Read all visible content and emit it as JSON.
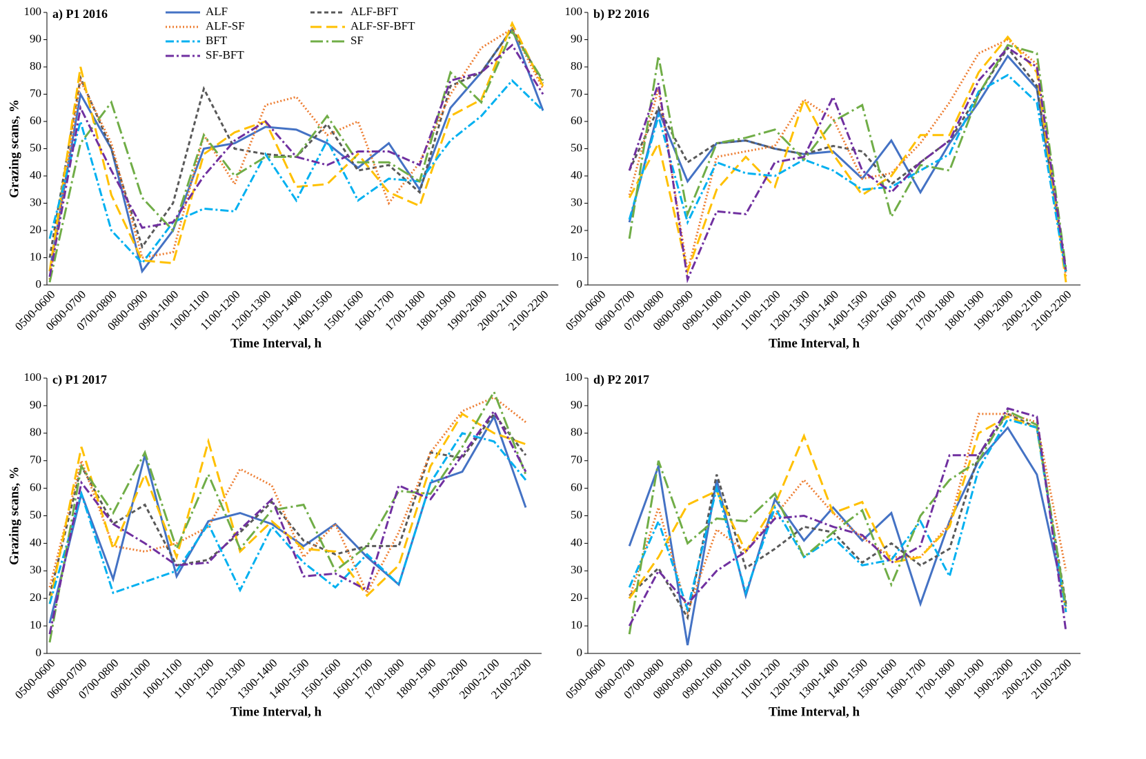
{
  "chart_data": [
    {
      "type": "line",
      "title": "a) P1 2016",
      "y_label": "Grazing scans, %",
      "x_label": "Time Interval, h",
      "categories": [
        "0500-0600",
        "0600-0700",
        "0700-0800",
        "0800-0900",
        "0900-1000",
        "1000-1100",
        "1100-1200",
        "1200-1300",
        "1300-1400",
        "1400-1500",
        "1500-1600",
        "1600-1700",
        "1700-1800",
        "1800-1900",
        "1900-2000",
        "2000-2100",
        "2100-2200"
      ],
      "ylim": [
        0,
        100
      ],
      "yticks": [
        0,
        10,
        20,
        30,
        40,
        50,
        60,
        70,
        80,
        90,
        100
      ],
      "legend": "top",
      "series": [
        {
          "name": "ALF",
          "color": "#4472c4",
          "line_style": "solid",
          "values": [
            5,
            70,
            50,
            5,
            20,
            50,
            52,
            58,
            57,
            52,
            43,
            52,
            35,
            65,
            78,
            94,
            64
          ]
        },
        {
          "name": "ALF-BFT",
          "color": "#595959",
          "line_style": "dashed",
          "values": [
            10,
            76,
            50,
            14,
            30,
            72,
            50,
            48,
            47,
            59,
            42,
            44,
            34,
            73,
            78,
            94,
            74
          ]
        },
        {
          "name": "ALF-SF",
          "color": "#ed7d31",
          "line_style": "dotted",
          "values": [
            2,
            75,
            52,
            10,
            12,
            55,
            37,
            66,
            69,
            55,
            60,
            30,
            45,
            70,
            87,
            94,
            72
          ]
        },
        {
          "name": "ALF-SF-BFT",
          "color": "#ffc000",
          "line_style": "long-dashed",
          "values": [
            5,
            80,
            33,
            9,
            8,
            48,
            56,
            60,
            36,
            37,
            48,
            34,
            29,
            62,
            68,
            96,
            73
          ]
        },
        {
          "name": "BFT",
          "color": "#00b0f0",
          "line_style": "dash-dot",
          "values": [
            17,
            60,
            20,
            8,
            23,
            28,
            27,
            48,
            31,
            53,
            31,
            39,
            38,
            53,
            62,
            75,
            64
          ]
        },
        {
          "name": "SF",
          "color": "#70ad47",
          "line_style": "long-dash-dot",
          "values": [
            1,
            52,
            67,
            32,
            20,
            55,
            40,
            47,
            47,
            62,
            45,
            45,
            38,
            78,
            67,
            93,
            75
          ]
        },
        {
          "name": "SF-BFT",
          "color": "#7030a0",
          "line_style": "dash-dot",
          "values": [
            3,
            65,
            42,
            21,
            23,
            40,
            53,
            60,
            47,
            44,
            49,
            49,
            44,
            75,
            78,
            88,
            70
          ]
        }
      ]
    },
    {
      "type": "line",
      "title": "b) P2 2016",
      "x_label": "Time Interval, h",
      "categories": [
        "0500-0600",
        "0600-0700",
        "0700-0800",
        "0800-0900",
        "0900-1000",
        "1000-1100",
        "1100-1200",
        "1200-1300",
        "1300-1400",
        "1400-1500",
        "1500-1600",
        "1600-1700",
        "1700-1800",
        "1800-1900",
        "1900-2000",
        "2000-2100",
        "2100-2200"
      ],
      "ylim": [
        0,
        100
      ],
      "yticks": [
        0,
        10,
        20,
        30,
        40,
        50,
        60,
        70,
        80,
        90,
        100
      ],
      "series": [
        {
          "color": "#4472c4",
          "line_style": "solid",
          "values": [
            null,
            23,
            64,
            38,
            52,
            53,
            50,
            48,
            49,
            39,
            53,
            34,
            52,
            67,
            84,
            72,
            5
          ]
        },
        {
          "color": "#595959",
          "line_style": "dashed",
          "values": [
            null,
            42,
            65,
            45,
            52,
            53,
            50,
            48,
            51,
            49,
            37,
            45,
            53,
            70,
            87,
            73,
            5
          ]
        },
        {
          "color": "#ed7d31",
          "line_style": "dotted",
          "values": [
            null,
            33,
            72,
            5,
            47,
            49,
            51,
            68,
            61,
            39,
            41,
            52,
            67,
            85,
            90,
            81,
            3
          ]
        },
        {
          "color": "#ffc000",
          "line_style": "long-dashed",
          "values": [
            null,
            32,
            52,
            5,
            35,
            47,
            36,
            68,
            48,
            33,
            40,
            55,
            55,
            78,
            91,
            78,
            1
          ]
        },
        {
          "color": "#00b0f0",
          "line_style": "dash-dot",
          "values": [
            null,
            24,
            62,
            23,
            45,
            41,
            40,
            46,
            42,
            35,
            36,
            42,
            48,
            71,
            77,
            67,
            4
          ]
        },
        {
          "color": "#70ad47",
          "line_style": "long-dash-dot",
          "values": [
            null,
            17,
            84,
            26,
            52,
            54,
            57,
            46,
            60,
            66,
            25,
            44,
            42,
            70,
            88,
            85,
            6
          ]
        },
        {
          "color": "#7030a0",
          "line_style": "dash-dot",
          "values": [
            null,
            42,
            74,
            2,
            27,
            26,
            45,
            47,
            69,
            42,
            34,
            45,
            53,
            75,
            87,
            80,
            5
          ]
        }
      ]
    },
    {
      "type": "line",
      "title": "c) P1 2017",
      "y_label": "Grazing scans, %",
      "x_label": "Time Interval, h",
      "categories": [
        "0500-0600",
        "0600-0700",
        "0700-0800",
        "0900-1000",
        "1000-1100",
        "1100-1200",
        "1200-1300",
        "1300-1400",
        "1400-1500",
        "1500-1600",
        "1600-1700",
        "1700-1800",
        "1800-1900",
        "1900-2000",
        "2000-2100",
        "2100-2200"
      ],
      "ylim": [
        0,
        100
      ],
      "yticks": [
        0,
        10,
        20,
        30,
        40,
        50,
        60,
        70,
        80,
        90,
        100
      ],
      "series": [
        {
          "color": "#4472c4",
          "line_style": "solid",
          "values": [
            11,
            58,
            27,
            72,
            28,
            48,
            51,
            47,
            39,
            47,
            35,
            25,
            62,
            66,
            86,
            53
          ]
        },
        {
          "color": "#595959",
          "line_style": "dashed",
          "values": [
            21,
            68,
            47,
            54,
            32,
            34,
            44,
            55,
            41,
            36,
            39,
            39,
            73,
            71,
            87,
            72
          ]
        },
        {
          "color": "#ed7d31",
          "line_style": "dotted",
          "values": [
            24,
            70,
            39,
            37,
            40,
            46,
            67,
            61,
            35,
            47,
            22,
            44,
            73,
            88,
            93,
            84
          ]
        },
        {
          "color": "#ffc000",
          "line_style": "long-dashed",
          "values": [
            18,
            75,
            38,
            65,
            35,
            77,
            37,
            48,
            38,
            37,
            21,
            32,
            68,
            87,
            80,
            76
          ]
        },
        {
          "color": "#00b0f0",
          "line_style": "dash-dot",
          "values": [
            18,
            58,
            22,
            26,
            30,
            47,
            23,
            46,
            33,
            24,
            36,
            25,
            62,
            80,
            77,
            63
          ]
        },
        {
          "color": "#70ad47",
          "line_style": "long-dash-dot",
          "values": [
            4,
            68,
            51,
            73,
            38,
            65,
            38,
            52,
            54,
            30,
            39,
            59,
            58,
            75,
            95,
            65
          ]
        },
        {
          "color": "#7030a0",
          "line_style": "dash-dot",
          "values": [
            7,
            62,
            47,
            40,
            32,
            33,
            45,
            56,
            28,
            29,
            23,
            61,
            56,
            72,
            88,
            66
          ]
        }
      ]
    },
    {
      "type": "line",
      "title": "d) P2 2017",
      "x_label": "Time Interval, h",
      "categories": [
        "0500-0600",
        "0600-0700",
        "0700-0800",
        "0800-0900",
        "0900-1000",
        "1000-1100",
        "1100-1200",
        "1200-1300",
        "1300-1400",
        "1400-1500",
        "1500-1600",
        "1600-1700",
        "1700-1800",
        "1800-1900",
        "1900-2000",
        "2000-2100",
        "2100-2200"
      ],
      "ylim": [
        0,
        100
      ],
      "yticks": [
        0,
        10,
        20,
        30,
        40,
        50,
        60,
        70,
        80,
        90,
        100
      ],
      "series": [
        {
          "color": "#4472c4",
          "line_style": "solid",
          "values": [
            null,
            39,
            68,
            3,
            63,
            21,
            56,
            41,
            53,
            41,
            51,
            18,
            48,
            70,
            82,
            65,
            17
          ]
        },
        {
          "color": "#595959",
          "line_style": "dashed",
          "values": [
            null,
            21,
            31,
            13,
            65,
            31,
            38,
            46,
            44,
            33,
            40,
            32,
            38,
            72,
            87,
            82,
            18
          ]
        },
        {
          "color": "#ed7d31",
          "line_style": "dotted",
          "values": [
            null,
            20,
            53,
            15,
            45,
            37,
            50,
            63,
            51,
            42,
            35,
            35,
            47,
            87,
            87,
            84,
            30
          ]
        },
        {
          "color": "#ffc000",
          "line_style": "long-dashed",
          "values": [
            null,
            20,
            35,
            54,
            59,
            37,
            54,
            79,
            51,
            55,
            33,
            35,
            46,
            80,
            86,
            82,
            15
          ]
        },
        {
          "color": "#00b0f0",
          "line_style": "dash-dot",
          "values": [
            null,
            24,
            48,
            16,
            60,
            22,
            53,
            35,
            42,
            32,
            34,
            48,
            28,
            67,
            85,
            82,
            15
          ]
        },
        {
          "color": "#70ad47",
          "line_style": "long-dash-dot",
          "values": [
            null,
            7,
            70,
            40,
            49,
            48,
            58,
            35,
            44,
            52,
            25,
            50,
            63,
            70,
            88,
            83,
            17
          ]
        },
        {
          "color": "#7030a0",
          "line_style": "dash-dot",
          "values": [
            null,
            10,
            30,
            18,
            30,
            37,
            49,
            50,
            46,
            43,
            33,
            39,
            72,
            72,
            89,
            86,
            8
          ]
        }
      ]
    }
  ]
}
